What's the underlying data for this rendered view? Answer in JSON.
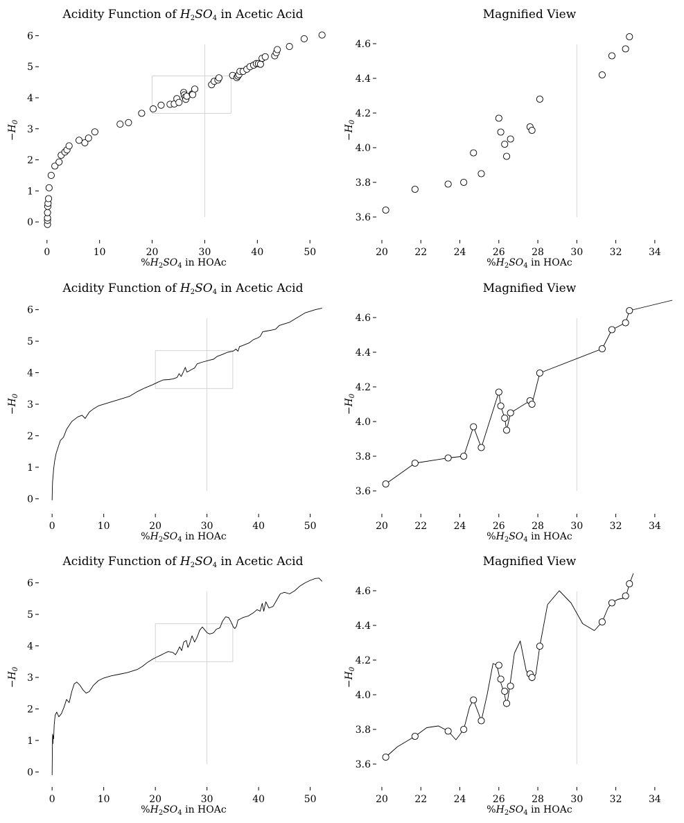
{
  "figure": {
    "panels": [
      {
        "id": "p1",
        "title": "Acidity Function of H2SO4 in Acetic Acid",
        "xlabel": "%H2SO4 in HOAc",
        "ylabel": "-H0"
      },
      {
        "id": "p2",
        "title": "Magnified View",
        "xlabel": "%H2SO4 in HOAc",
        "ylabel": "-H0"
      },
      {
        "id": "p3",
        "title": "Acidity Function of H2SO4 in Acetic Acid",
        "xlabel": "%H2SO4 in HOAc",
        "ylabel": "-H0"
      },
      {
        "id": "p4",
        "title": "Magnified View",
        "xlabel": "%H2SO4 in HOAc",
        "ylabel": "-H0"
      },
      {
        "id": "p5",
        "title": "Acidity Function of H2SO4 in Acetic Acid",
        "xlabel": "%H2SO4 in HOAc",
        "ylabel": "-H0"
      },
      {
        "id": "p6",
        "title": "Magnified View",
        "xlabel": "%H2SO4 in HOAc",
        "ylabel": "-H0"
      }
    ]
  },
  "chart_data": [
    {
      "type": "scatter",
      "title": "Acidity Function of H2SO4 in Acetic Acid",
      "xlabel": "%H2SO4 in HOAc",
      "ylabel": "-H0",
      "xlim": [
        -0.5,
        53
      ],
      "ylim": [
        -0.4,
        6.3
      ],
      "xticks": [
        0,
        10,
        20,
        30,
        40,
        50
      ],
      "yticks": [
        0,
        1,
        2,
        3,
        4,
        5,
        6
      ],
      "grid": false,
      "inset_box": {
        "x": [
          20,
          35
        ],
        "y": [
          3.5,
          4.7
        ]
      },
      "vline_x": 30,
      "x": [
        0.1,
        0.1,
        0.1,
        0.1,
        0.15,
        0.2,
        0.3,
        0.4,
        0.8,
        1.5,
        2.3,
        2.7,
        3.4,
        3.8,
        4.2,
        6.1,
        7.2,
        7.9,
        9.1,
        13.9,
        15.5,
        18.0,
        20.2,
        21.7,
        23.4,
        24.2,
        24.7,
        25.1,
        26.0,
        26.1,
        26.3,
        26.4,
        26.6,
        27.6,
        27.7,
        28.1,
        31.3,
        31.8,
        32.5,
        32.7,
        35.3,
        36.1,
        36.3,
        36.5,
        36.7,
        37.3,
        38.0,
        38.6,
        39.3,
        39.8,
        40.2,
        40.6,
        40.9,
        41.5,
        43.3,
        43.6,
        43.8,
        46.1,
        48.9,
        52.3
      ],
      "y": [
        -0.08,
        0.05,
        0.13,
        0.3,
        0.5,
        0.6,
        0.75,
        1.1,
        1.5,
        1.8,
        1.93,
        2.15,
        2.25,
        2.32,
        2.45,
        2.63,
        2.55,
        2.7,
        2.9,
        3.15,
        3.2,
        3.5,
        3.64,
        3.76,
        3.79,
        3.8,
        3.97,
        3.85,
        4.17,
        4.09,
        4.02,
        3.95,
        4.05,
        4.12,
        4.1,
        4.28,
        4.42,
        4.53,
        4.57,
        4.64,
        4.72,
        4.65,
        4.7,
        4.75,
        4.85,
        4.85,
        4.92,
        5.0,
        5.05,
        5.1,
        5.1,
        5.08,
        5.27,
        5.32,
        5.35,
        5.45,
        5.55,
        5.65,
        5.9,
        6.02
      ]
    },
    {
      "type": "scatter",
      "title": "Magnified View",
      "xlabel": "%H2SO4 in HOAc",
      "ylabel": "-H0",
      "xlim": [
        20,
        35
      ],
      "ylim": [
        3.5,
        4.7
      ],
      "xticks": [
        20,
        22,
        24,
        26,
        28,
        30,
        32,
        34
      ],
      "yticks": [
        3.6,
        3.8,
        4.0,
        4.2,
        4.4,
        4.6
      ],
      "grid": false,
      "vline_x": 30,
      "x": [
        20.2,
        21.7,
        23.4,
        24.2,
        24.7,
        25.1,
        26.0,
        26.1,
        26.3,
        26.4,
        26.6,
        27.6,
        27.7,
        28.1,
        31.3,
        31.8,
        32.5,
        32.7
      ],
      "y": [
        3.64,
        3.76,
        3.79,
        3.8,
        3.97,
        3.85,
        4.17,
        4.09,
        4.02,
        3.95,
        4.05,
        4.12,
        4.1,
        4.28,
        4.42,
        4.53,
        4.57,
        4.64
      ]
    },
    {
      "type": "line",
      "title": "Acidity Function of H2SO4 in Acetic Acid",
      "xlabel": "%H2SO4 in HOAc",
      "ylabel": "-H0",
      "xlim": [
        -1.5,
        53
      ],
      "ylim": [
        -0.3,
        6.3
      ],
      "xticks": [
        0,
        10,
        20,
        30,
        40,
        50
      ],
      "yticks": [
        0,
        1,
        2,
        3,
        4,
        5,
        6
      ],
      "grid": false,
      "inset_box": {
        "x": [
          20,
          35
        ],
        "y": [
          3.5,
          4.7
        ]
      },
      "vline_x": 30,
      "x": [
        0,
        0.05,
        0.1,
        0.2,
        0.3,
        0.5,
        0.8,
        1.2,
        1.6,
        2.2,
        2.8,
        3.2,
        3.8,
        4.2,
        5.0,
        5.8,
        6.4,
        7.2,
        8.0,
        9.0,
        11.0,
        13.0,
        15.0,
        16.5,
        18.0,
        19.5,
        20.5,
        21.5,
        22.5,
        23.4,
        24.2,
        24.6,
        25.0,
        25.3,
        25.8,
        26.1,
        26.5,
        27.0,
        27.6,
        28.1,
        29.0,
        30.5,
        31.3,
        32.0,
        33.0,
        34.0,
        35.0,
        35.2,
        35.6,
        36.0,
        36.3,
        36.7,
        37.5,
        38.2,
        39.0,
        39.8,
        40.3,
        40.8,
        41.5,
        42.5,
        43.3,
        44.0,
        45.0,
        46.0,
        47.0,
        48.0,
        49.0,
        50.0,
        51.0,
        52.3
      ],
      "y": [
        -0.05,
        0.3,
        0.55,
        0.75,
        0.95,
        1.2,
        1.45,
        1.65,
        1.85,
        1.95,
        2.2,
        2.3,
        2.45,
        2.5,
        2.6,
        2.65,
        2.55,
        2.75,
        2.85,
        2.95,
        3.05,
        3.15,
        3.25,
        3.4,
        3.52,
        3.62,
        3.7,
        3.77,
        3.78,
        3.8,
        3.85,
        3.97,
        3.88,
        3.98,
        4.17,
        4.02,
        4.05,
        4.1,
        4.15,
        4.28,
        4.33,
        4.4,
        4.43,
        4.52,
        4.58,
        4.65,
        4.68,
        4.7,
        4.75,
        4.68,
        4.83,
        4.85,
        4.9,
        4.95,
        5.05,
        5.1,
        5.15,
        5.3,
        5.32,
        5.35,
        5.38,
        5.5,
        5.55,
        5.6,
        5.7,
        5.8,
        5.9,
        5.95,
        6.0,
        6.05
      ]
    },
    {
      "type": "line",
      "title": "Magnified View",
      "xlabel": "%H2SO4 in HOAc",
      "ylabel": "-H0",
      "xlim": [
        20,
        35
      ],
      "ylim": [
        3.5,
        4.7
      ],
      "xticks": [
        20,
        22,
        24,
        26,
        28,
        30,
        32,
        34
      ],
      "yticks": [
        3.6,
        3.8,
        4.0,
        4.2,
        4.4,
        4.6
      ],
      "grid": false,
      "vline_x": 30,
      "markers": {
        "x": [
          20.2,
          21.7,
          23.4,
          24.2,
          24.7,
          25.1,
          26.0,
          26.1,
          26.3,
          26.4,
          26.6,
          27.6,
          27.7,
          28.1,
          31.3,
          31.8,
          32.5,
          32.7
        ],
        "y": [
          3.64,
          3.76,
          3.79,
          3.8,
          3.97,
          3.85,
          4.17,
          4.09,
          4.02,
          3.95,
          4.05,
          4.12,
          4.1,
          4.28,
          4.42,
          4.53,
          4.57,
          4.64
        ]
      },
      "x": [
        20.2,
        21.7,
        23.4,
        24.2,
        24.7,
        25.1,
        26.0,
        26.1,
        26.3,
        26.4,
        26.6,
        27.6,
        27.7,
        28.1,
        31.3,
        31.8,
        32.5,
        32.7,
        34.9
      ],
      "y": [
        3.64,
        3.76,
        3.79,
        3.8,
        3.97,
        3.85,
        4.17,
        4.09,
        4.02,
        3.95,
        4.05,
        4.12,
        4.1,
        4.28,
        4.42,
        4.53,
        4.57,
        4.64,
        4.7
      ]
    },
    {
      "type": "line",
      "title": "Acidity Function of H2SO4 in Acetic Acid",
      "xlabel": "%H2SO4 in HOAc",
      "ylabel": "-H0",
      "xlim": [
        -1.5,
        53
      ],
      "ylim": [
        -0.3,
        6.3
      ],
      "xticks": [
        0,
        10,
        20,
        30,
        40,
        50
      ],
      "yticks": [
        0,
        1,
        2,
        3,
        4,
        5,
        6
      ],
      "grid": false,
      "inset_box": {
        "x": [
          20,
          35
        ],
        "y": [
          3.5,
          4.7
        ]
      },
      "vline_x": 30,
      "x": [
        0,
        0.05,
        0.1,
        0.15,
        0.2,
        0.3,
        0.4,
        0.6,
        0.9,
        1.3,
        1.8,
        2.3,
        2.8,
        3.3,
        3.8,
        4.3,
        4.8,
        5.4,
        6.0,
        6.6,
        7.2,
        8.0,
        9.0,
        10.0,
        11.5,
        13.0,
        14.5,
        15.5,
        16.5,
        17.5,
        18.5,
        19.5,
        20.2,
        21.0,
        21.7,
        22.5,
        23.4,
        23.9,
        24.2,
        24.7,
        25.1,
        25.5,
        26.0,
        26.3,
        26.6,
        27.1,
        27.6,
        28.1,
        28.6,
        29.1,
        29.6,
        30.0,
        30.5,
        31.0,
        31.3,
        31.8,
        32.5,
        33.0,
        33.6,
        34.2,
        34.7,
        35.1,
        35.4,
        35.7,
        36.0,
        36.4,
        37.0,
        38.0,
        39.0,
        39.7,
        40.3,
        40.7,
        41.0,
        41.4,
        42.0,
        42.8,
        43.5,
        44.2,
        45.0,
        46.0,
        47.0,
        48.0,
        49.0,
        50.0,
        51.0,
        51.7,
        52.3
      ],
      "y": [
        -0.1,
        0.6,
        1.2,
        0.9,
        1.15,
        1.05,
        1.5,
        1.8,
        1.9,
        1.75,
        1.85,
        2.05,
        2.3,
        2.2,
        2.55,
        2.8,
        2.85,
        2.75,
        2.6,
        2.5,
        2.55,
        2.75,
        2.9,
        2.98,
        3.05,
        3.1,
        3.15,
        3.2,
        3.25,
        3.35,
        3.48,
        3.58,
        3.64,
        3.7,
        3.76,
        3.82,
        3.79,
        3.72,
        3.8,
        3.97,
        3.85,
        4.12,
        4.17,
        3.95,
        4.05,
        4.32,
        4.12,
        4.28,
        4.5,
        4.6,
        4.5,
        4.42,
        4.38,
        4.4,
        4.42,
        4.53,
        4.57,
        4.78,
        4.92,
        4.9,
        4.75,
        4.6,
        4.55,
        4.62,
        4.82,
        4.85,
        4.9,
        4.95,
        5.05,
        5.15,
        5.1,
        5.35,
        5.1,
        5.4,
        5.2,
        5.25,
        5.45,
        5.65,
        5.7,
        5.65,
        5.75,
        5.9,
        6.0,
        6.08,
        6.14,
        6.15,
        6.05
      ]
    },
    {
      "type": "line",
      "title": "Magnified View",
      "xlabel": "%H2SO4 in HOAc",
      "ylabel": "-H0",
      "xlim": [
        20,
        35
      ],
      "ylim": [
        3.5,
        4.7
      ],
      "xticks": [
        20,
        22,
        24,
        26,
        28,
        30,
        32,
        34
      ],
      "yticks": [
        3.6,
        3.8,
        4.0,
        4.2,
        4.4,
        4.6
      ],
      "grid": false,
      "vline_x": 30,
      "markers": {
        "x": [
          20.2,
          21.7,
          23.4,
          24.2,
          24.7,
          25.1,
          26.0,
          26.1,
          26.3,
          26.4,
          26.6,
          27.6,
          27.7,
          28.1,
          31.3,
          31.8,
          32.5,
          32.7
        ],
        "y": [
          3.64,
          3.76,
          3.79,
          3.8,
          3.97,
          3.85,
          4.17,
          4.09,
          4.02,
          3.95,
          4.05,
          4.12,
          4.1,
          4.28,
          4.42,
          4.53,
          4.57,
          4.64
        ]
      },
      "x": [
        20.2,
        20.8,
        21.7,
        22.3,
        22.9,
        23.4,
        23.8,
        24.2,
        24.5,
        24.7,
        25.1,
        25.4,
        25.7,
        25.9,
        26.1,
        26.3,
        26.4,
        26.6,
        26.8,
        27.1,
        27.4,
        27.7,
        27.9,
        28.1,
        28.5,
        29.1,
        29.7,
        30.3,
        30.9,
        31.3,
        31.6,
        31.8,
        32.1,
        32.5,
        32.7,
        32.9
      ],
      "y": [
        3.64,
        3.7,
        3.76,
        3.81,
        3.82,
        3.79,
        3.74,
        3.8,
        3.93,
        3.97,
        3.85,
        4.0,
        4.18,
        4.17,
        4.07,
        4.0,
        3.93,
        4.08,
        4.24,
        4.31,
        4.14,
        4.08,
        4.12,
        4.28,
        4.52,
        4.6,
        4.53,
        4.41,
        4.37,
        4.42,
        4.5,
        4.53,
        4.55,
        4.56,
        4.64,
        4.7
      ]
    }
  ]
}
